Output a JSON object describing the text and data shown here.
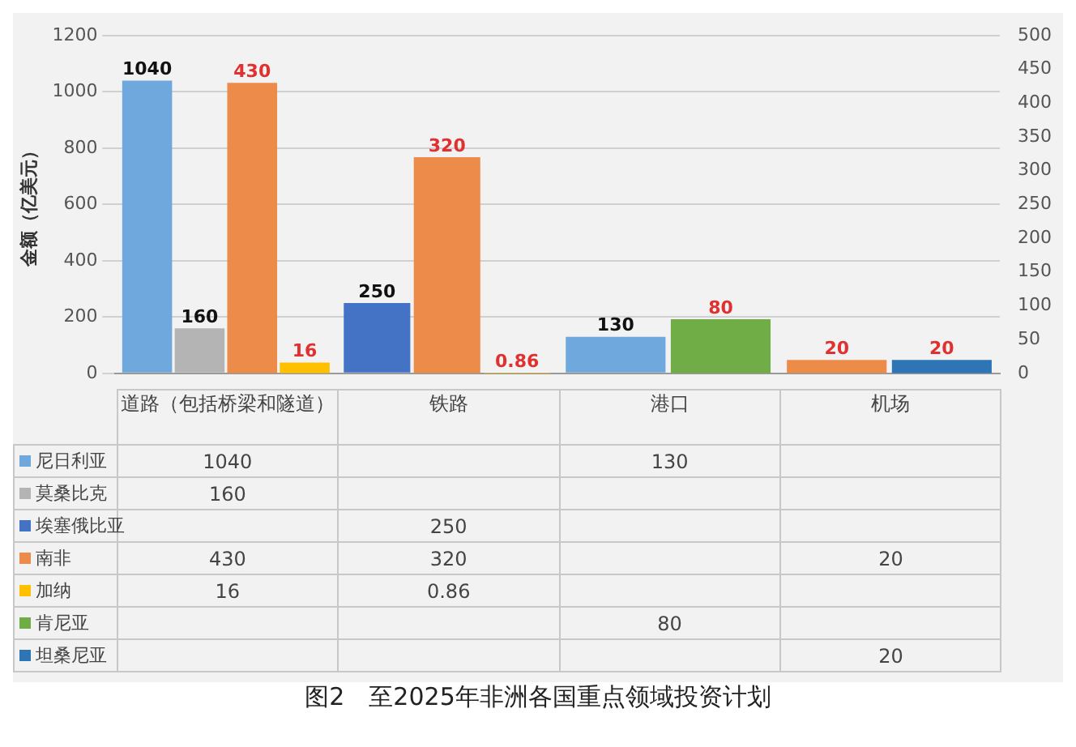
{
  "chart_data": {
    "type": "bar",
    "title": "图2　至2025年非洲各国重点领域投资计划",
    "ylabel": "金额（亿美元）",
    "categories": [
      "道路（包括桥梁和隧道）",
      "铁路",
      "港口",
      "机场"
    ],
    "series": [
      {
        "name": "尼日利亚",
        "color": "#6fa8dc",
        "values": [
          1040,
          null,
          130,
          null
        ]
      },
      {
        "name": "莫桑比克",
        "color": "#b4b4b4",
        "values": [
          160,
          null,
          null,
          null
        ]
      },
      {
        "name": "埃塞俄比亚",
        "color": "#4472c4",
        "values": [
          null,
          250,
          null,
          null
        ]
      },
      {
        "name": "南非",
        "color": "#ed8c4a",
        "values": [
          430,
          320,
          null,
          20
        ],
        "axis": "y2"
      },
      {
        "name": "加纳",
        "color": "#ffc000",
        "values": [
          16,
          0.86,
          null,
          null
        ],
        "axis": "y2"
      },
      {
        "name": "肯尼亚",
        "color": "#70ad47",
        "values": [
          null,
          null,
          80,
          null
        ],
        "axis": "y2"
      },
      {
        "name": "坦桑尼亚",
        "color": "#2e75b6",
        "values": [
          null,
          null,
          null,
          20
        ],
        "axis": "y2"
      }
    ],
    "annotations": [
      "1040",
      "160",
      "430",
      "16",
      "250",
      "320",
      "0.86",
      "130",
      "80",
      "20",
      "20"
    ],
    "ylim": [
      0,
      1200
    ],
    "yticks": [
      0,
      200,
      400,
      600,
      800,
      1000,
      1200
    ],
    "y2lim": [
      0,
      500
    ],
    "y2ticks": [
      0,
      50,
      100,
      150,
      200,
      250,
      300,
      350,
      400,
      450,
      500
    ],
    "grid": "y",
    "legend": "bottom",
    "data_labels": true
  }
}
